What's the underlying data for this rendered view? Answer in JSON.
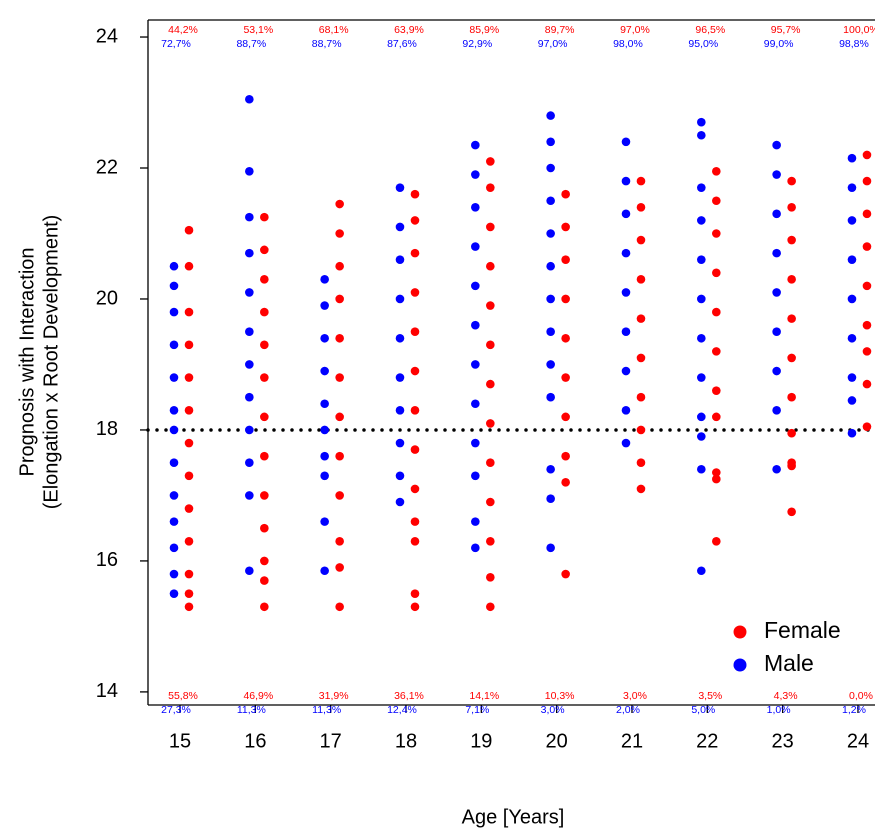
{
  "chart_data": {
    "type": "strip",
    "y_label_lines": [
      "Prognosis with Interaction",
      "(Elongation  x  Root Development)"
    ],
    "x_label": "Age [Years]",
    "categories": [
      "15",
      "16",
      "17",
      "18",
      "19",
      "20",
      "21",
      "22",
      "23",
      "24"
    ],
    "ylim": [
      13.8,
      24.26
    ],
    "yticks": [
      14,
      16,
      18,
      20,
      22,
      24
    ],
    "threshold": 18,
    "legend": "bottom-right",
    "series": [
      {
        "name": "Female",
        "color": "#ff0000",
        "above_labels": [
          "44,2%",
          "53,1%",
          "68,1%",
          "63,9%",
          "85,9%",
          "89,7%",
          "97,0%",
          "96,5%",
          "95,7%",
          "100,0%"
        ],
        "below_labels": [
          "55,8%",
          "46,9%",
          "31,9%",
          "36,1%",
          "14,1%",
          "10,3%",
          "3,0%",
          "3,5%",
          "4,3%",
          "0,0%"
        ],
        "values": [
          [
            21.05,
            20.5,
            19.8,
            19.3,
            18.8,
            18.3,
            17.8,
            17.3,
            16.8,
            16.3,
            15.8,
            15.5,
            15.3
          ],
          [
            21.25,
            20.75,
            20.3,
            19.8,
            19.3,
            18.8,
            18.2,
            17.6,
            17.0,
            16.5,
            16.0,
            15.7,
            15.3
          ],
          [
            21.45,
            21.0,
            20.5,
            20.0,
            19.4,
            18.8,
            18.2,
            17.6,
            17.0,
            16.3,
            15.9,
            15.3
          ],
          [
            21.6,
            21.2,
            20.7,
            20.1,
            19.5,
            18.9,
            18.3,
            17.7,
            17.1,
            16.6,
            16.3,
            15.5,
            15.3
          ],
          [
            22.1,
            21.7,
            21.1,
            20.5,
            19.9,
            19.3,
            18.7,
            18.1,
            17.5,
            16.9,
            16.3,
            15.75,
            15.3
          ],
          [
            21.6,
            21.1,
            20.6,
            20.0,
            19.4,
            18.8,
            18.2,
            17.6,
            17.2,
            15.8
          ],
          [
            21.8,
            21.4,
            20.9,
            20.3,
            19.7,
            19.1,
            18.5,
            18.0,
            17.5,
            17.1
          ],
          [
            21.95,
            21.5,
            21.0,
            20.4,
            19.8,
            19.2,
            18.6,
            18.2,
            17.35,
            17.25,
            16.3
          ],
          [
            21.8,
            21.4,
            20.9,
            20.3,
            19.7,
            19.1,
            18.5,
            17.95,
            17.5,
            17.45,
            16.75
          ],
          [
            22.2,
            21.8,
            21.3,
            20.8,
            20.2,
            19.6,
            19.2,
            18.7,
            18.05
          ]
        ]
      },
      {
        "name": "Male",
        "color": "#0000ff",
        "above_labels": [
          "72,7%",
          "88,7%",
          "88,7%",
          "87,6%",
          "92,9%",
          "97,0%",
          "98,0%",
          "95,0%",
          "99,0%",
          "98,8%"
        ],
        "below_labels": [
          "27,3%",
          "11,3%",
          "11,3%",
          "12,4%",
          "7,1%",
          "3,0%",
          "2,0%",
          "5,0%",
          "1,0%",
          "1,2%"
        ],
        "values": [
          [
            20.5,
            20.2,
            19.8,
            19.3,
            18.8,
            18.3,
            18.0,
            17.5,
            17.0,
            16.6,
            16.2,
            15.8,
            15.5
          ],
          [
            23.05,
            21.95,
            21.25,
            20.7,
            20.1,
            19.5,
            19.0,
            18.5,
            18.0,
            17.5,
            17.0,
            15.85
          ],
          [
            20.3,
            19.9,
            19.4,
            18.9,
            18.4,
            18.0,
            17.6,
            17.3,
            16.6,
            15.85
          ],
          [
            21.7,
            21.1,
            20.6,
            20.0,
            19.4,
            18.8,
            18.3,
            17.8,
            17.3,
            16.9
          ],
          [
            22.35,
            21.9,
            21.4,
            20.8,
            20.2,
            19.6,
            19.0,
            18.4,
            17.8,
            17.3,
            16.6,
            16.2
          ],
          [
            22.8,
            22.4,
            22.0,
            21.5,
            21.0,
            20.5,
            20.0,
            19.5,
            19.0,
            18.5,
            17.4,
            16.95,
            16.2
          ],
          [
            22.4,
            21.8,
            21.3,
            20.7,
            20.1,
            19.5,
            18.9,
            18.3,
            17.8
          ],
          [
            22.7,
            22.5,
            21.7,
            21.2,
            20.6,
            20.0,
            19.4,
            18.8,
            18.2,
            17.9,
            17.4,
            15.85
          ],
          [
            22.35,
            21.9,
            21.3,
            20.7,
            20.1,
            19.5,
            18.9,
            18.3,
            17.4
          ],
          [
            22.15,
            21.7,
            21.2,
            20.6,
            20.0,
            19.4,
            18.8,
            18.45,
            17.95
          ]
        ]
      }
    ]
  }
}
